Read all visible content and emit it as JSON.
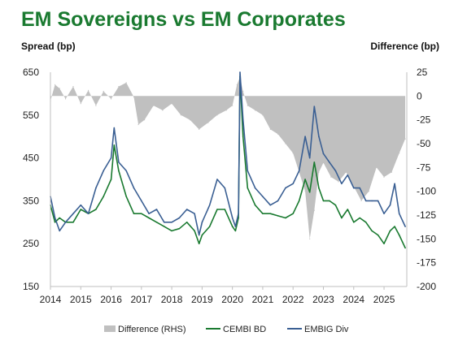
{
  "chart_data": {
    "type": "line",
    "title": "EM Sovereigns vs EM Corporates",
    "ylabel": "Spread (bp)",
    "y2label": "Difference (bp)",
    "ylim": [
      150,
      650
    ],
    "y2lim": [
      -200,
      25
    ],
    "yticks": [
      650,
      550,
      450,
      350,
      250,
      150
    ],
    "y2ticks": [
      25,
      0,
      -25,
      -50,
      -75,
      -100,
      -125,
      -150,
      -175,
      -200
    ],
    "xlim": [
      2014.0,
      2025.75
    ],
    "xticks": [
      "2014",
      "2015",
      "2016",
      "2017",
      "2018",
      "2019",
      "2020",
      "2021",
      "2022",
      "2023",
      "2024",
      "2025"
    ],
    "legend_position": "bottom",
    "colors": {
      "difference": "#c0c0c0",
      "cembi": "#1a7a30",
      "embig": "#3a5f93"
    },
    "series": [
      {
        "name": "Difference (RHS)",
        "axis": "right",
        "style": "bar",
        "x": [
          2014.0,
          2014.15,
          2014.3,
          2014.5,
          2014.75,
          2015.0,
          2015.25,
          2015.5,
          2015.75,
          2016.0,
          2016.25,
          2016.5,
          2016.75,
          2016.9,
          2017.1,
          2017.4,
          2017.7,
          2018.0,
          2018.3,
          2018.6,
          2018.9,
          2019.2,
          2019.5,
          2019.8,
          2020.0,
          2020.15,
          2020.25,
          2020.35,
          2020.5,
          2020.75,
          2021.0,
          2021.25,
          2021.5,
          2021.75,
          2022.0,
          2022.2,
          2022.4,
          2022.55,
          2022.7,
          2022.85,
          2023.0,
          2023.25,
          2023.5,
          2023.75,
          2024.0,
          2024.25,
          2024.5,
          2024.75,
          2025.0,
          2025.25,
          2025.5,
          2025.7
        ],
        "values": [
          -5,
          12,
          8,
          -3,
          10,
          -8,
          6,
          -10,
          5,
          -3,
          10,
          14,
          -1,
          -30,
          -25,
          -10,
          -15,
          -8,
          -20,
          -25,
          -35,
          -28,
          -20,
          -15,
          -10,
          12,
          20,
          5,
          -10,
          -15,
          -20,
          -35,
          -40,
          -50,
          -60,
          -80,
          -100,
          -150,
          -120,
          -80,
          -70,
          -85,
          -90,
          -80,
          -95,
          -110,
          -100,
          -75,
          -85,
          -80,
          -60,
          -45
        ]
      },
      {
        "name": "CEMBI BD",
        "axis": "left",
        "style": "line",
        "x": [
          2014.0,
          2014.15,
          2014.3,
          2014.5,
          2014.75,
          2015.0,
          2015.25,
          2015.5,
          2015.75,
          2016.0,
          2016.1,
          2016.25,
          2016.5,
          2016.75,
          2017.0,
          2017.25,
          2017.5,
          2017.75,
          2018.0,
          2018.25,
          2018.5,
          2018.75,
          2018.9,
          2019.0,
          2019.25,
          2019.5,
          2019.75,
          2020.0,
          2020.1,
          2020.2,
          2020.25,
          2020.35,
          2020.5,
          2020.75,
          2021.0,
          2021.25,
          2021.5,
          2021.75,
          2022.0,
          2022.2,
          2022.4,
          2022.55,
          2022.7,
          2022.85,
          2023.0,
          2023.2,
          2023.4,
          2023.6,
          2023.8,
          2024.0,
          2024.2,
          2024.4,
          2024.6,
          2024.8,
          2025.0,
          2025.2,
          2025.35,
          2025.5,
          2025.7
        ],
        "values": [
          340,
          300,
          310,
          300,
          300,
          330,
          320,
          330,
          360,
          400,
          480,
          420,
          360,
          320,
          320,
          310,
          300,
          290,
          280,
          285,
          300,
          280,
          250,
          270,
          290,
          330,
          330,
          290,
          280,
          310,
          640,
          500,
          380,
          340,
          320,
          320,
          315,
          310,
          320,
          350,
          400,
          370,
          440,
          380,
          350,
          350,
          340,
          310,
          330,
          300,
          310,
          300,
          280,
          270,
          250,
          280,
          290,
          270,
          240
        ]
      },
      {
        "name": "EMBIG Div",
        "axis": "left",
        "style": "line",
        "x": [
          2014.0,
          2014.15,
          2014.3,
          2014.5,
          2014.75,
          2015.0,
          2015.25,
          2015.5,
          2015.75,
          2016.0,
          2016.1,
          2016.25,
          2016.5,
          2016.75,
          2017.0,
          2017.25,
          2017.5,
          2017.75,
          2018.0,
          2018.25,
          2018.5,
          2018.75,
          2018.9,
          2019.0,
          2019.25,
          2019.5,
          2019.75,
          2020.0,
          2020.1,
          2020.2,
          2020.25,
          2020.35,
          2020.5,
          2020.75,
          2021.0,
          2021.25,
          2021.5,
          2021.75,
          2022.0,
          2022.2,
          2022.4,
          2022.55,
          2022.7,
          2022.85,
          2023.0,
          2023.2,
          2023.4,
          2023.6,
          2023.8,
          2024.0,
          2024.2,
          2024.4,
          2024.6,
          2024.8,
          2025.0,
          2025.2,
          2025.35,
          2025.5,
          2025.7
        ],
        "values": [
          360,
          310,
          280,
          300,
          320,
          340,
          320,
          380,
          420,
          450,
          520,
          440,
          420,
          380,
          350,
          320,
          330,
          300,
          300,
          310,
          330,
          320,
          270,
          300,
          340,
          400,
          380,
          310,
          290,
          320,
          650,
          540,
          420,
          380,
          360,
          340,
          350,
          380,
          390,
          420,
          500,
          450,
          570,
          500,
          460,
          440,
          420,
          390,
          410,
          380,
          380,
          350,
          350,
          350,
          320,
          340,
          390,
          320,
          290
        ]
      }
    ]
  }
}
